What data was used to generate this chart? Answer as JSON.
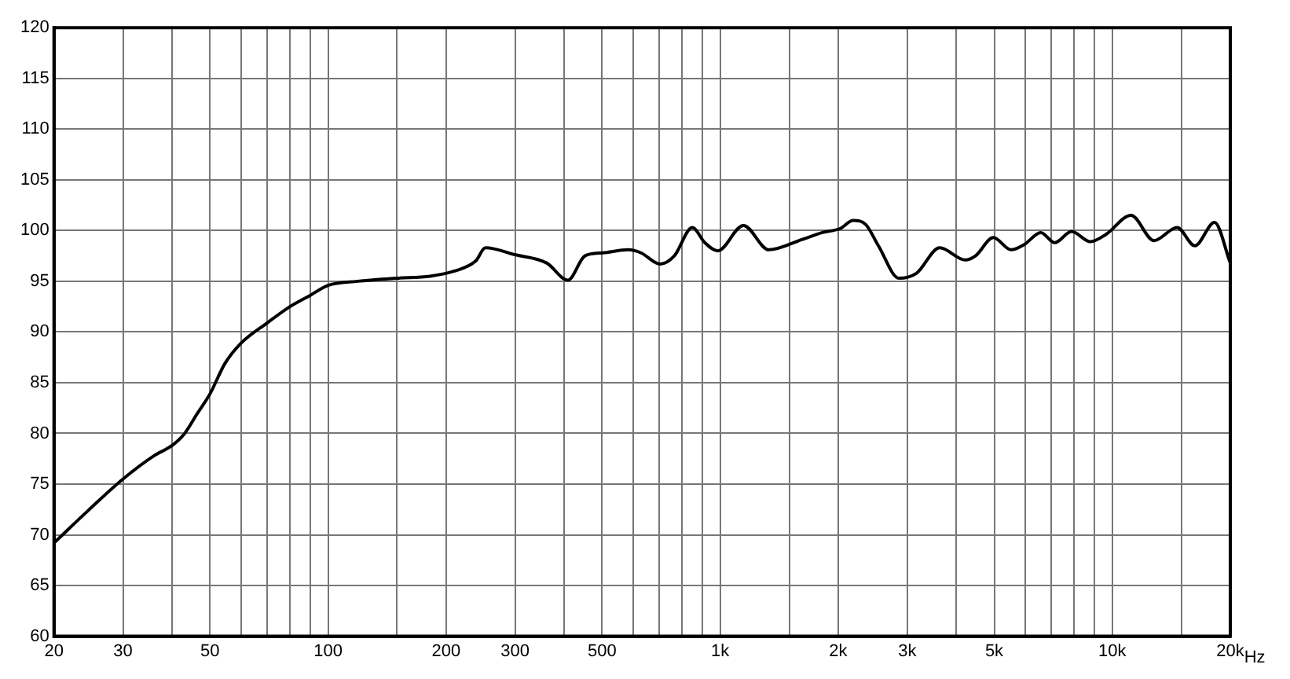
{
  "chart_data": {
    "type": "line",
    "log": "x",
    "grid": true,
    "marker": "none",
    "line_style": "solid",
    "xlim": [
      20,
      20000
    ],
    "ylim": [
      60,
      120
    ],
    "xticks": [
      20,
      30,
      {
        "value": 40,
        "label": null
      },
      50,
      {
        "value": 60,
        "label": null
      },
      {
        "value": 70,
        "label": null
      },
      {
        "value": 80,
        "label": null
      },
      {
        "value": 90,
        "label": null
      },
      100,
      {
        "value": 150,
        "label": null
      },
      200,
      300,
      {
        "value": 400,
        "label": null
      },
      500,
      {
        "value": 600,
        "label": null
      },
      {
        "value": 700,
        "label": null
      },
      {
        "value": 800,
        "label": null
      },
      {
        "value": 900,
        "label": null
      },
      {
        "value": 1000,
        "label": "1k"
      },
      {
        "value": 1500,
        "label": null
      },
      {
        "value": 2000,
        "label": "2k"
      },
      {
        "value": 3000,
        "label": "3k"
      },
      {
        "value": 4000,
        "label": null
      },
      {
        "value": 5000,
        "label": "5k"
      },
      {
        "value": 6000,
        "label": null
      },
      {
        "value": 7000,
        "label": null
      },
      {
        "value": 8000,
        "label": null
      },
      {
        "value": 9000,
        "label": null
      },
      {
        "value": 10000,
        "label": "10k"
      },
      {
        "value": 15000,
        "label": null
      },
      {
        "value": 20000,
        "label": "20k"
      }
    ],
    "xlabel": "Hz",
    "yticks": [
      60,
      65,
      70,
      75,
      80,
      85,
      90,
      95,
      100,
      105,
      110,
      115,
      120
    ],
    "series": [
      {
        "color": "#000000",
        "x": [
          20,
          24.3,
          30,
          36,
          40,
          43.1,
          46.3,
          50,
          54.6,
          60,
          70,
          80,
          90,
          100,
          119,
          150,
          182,
          210,
          238,
          252,
          301,
          361,
          409,
          452,
          502,
          583,
          628,
          703,
          764,
          849,
          914,
          986,
          1146,
          1331,
          1615,
          1823,
          2024,
          2183,
          2350,
          2533,
          2858,
          3170,
          3630,
          4219,
          4479,
          4974,
          5522,
          5955,
          6573,
          7130,
          7873,
          8800,
          9626,
          11170,
          12780,
          14630,
          16250,
          18230,
          20000
        ],
        "values": [
          69.2,
          72.3,
          75.5,
          77.8,
          78.8,
          80,
          81.9,
          83.9,
          86.9,
          88.9,
          90.9,
          92.5,
          93.6,
          94.6,
          95.0,
          95.3,
          95.5,
          96.0,
          97.0,
          98.3,
          97.6,
          96.8,
          95.1,
          97.5,
          97.8,
          98.1,
          97.8,
          96.7,
          97.5,
          100.3,
          98.8,
          98.0,
          100.5,
          98.1,
          99.1,
          99.8,
          100.2,
          101.0,
          100.6,
          98.5,
          95.3,
          95.8,
          98.3,
          97.1,
          97.5,
          99.3,
          98.1,
          98.6,
          99.8,
          98.8,
          99.9,
          98.9,
          99.6,
          101.5,
          99.0,
          100.3,
          98.5,
          100.8,
          96.8
        ]
      }
    ]
  }
}
